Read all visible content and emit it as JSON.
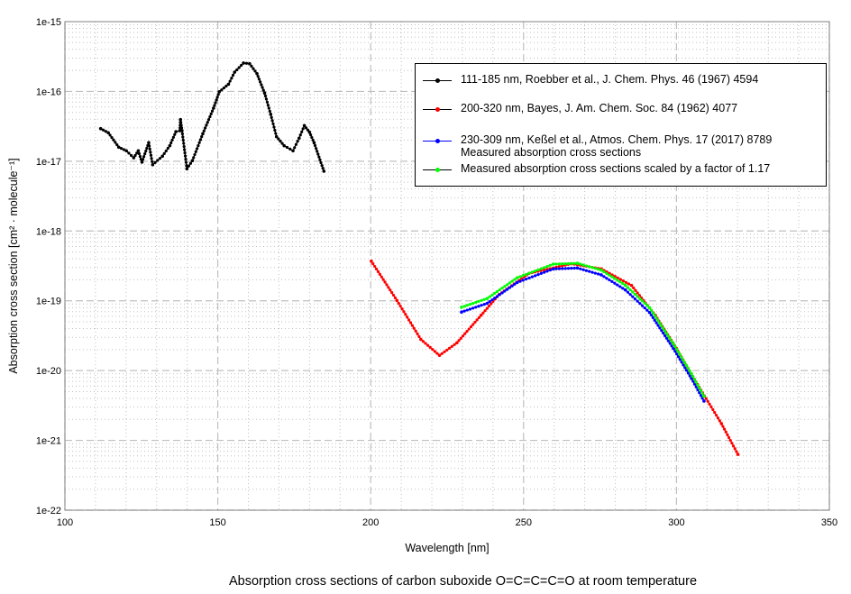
{
  "chart_data": {
    "type": "line",
    "title": "Absorption cross sections of carbon suboxide O=C=C=C=O at room temperature",
    "xlabel": "Wavelength [nm]",
    "ylabel": "Absorption cross section [cm² · molecule⁻¹]",
    "xlim": [
      100,
      350
    ],
    "ylim": [
      1e-22,
      1e-15
    ],
    "yscale": "log",
    "grid": true,
    "legend_position": "top-right",
    "x_ticks": [
      "100",
      "150",
      "200",
      "250",
      "300",
      "350"
    ],
    "y_ticks": [
      "1e-22",
      "1e-21",
      "1e-20",
      "1e-19",
      "1e-18",
      "1e-17",
      "1e-16",
      "1e-15"
    ],
    "series": [
      {
        "name": "111-185 nm, Roebber et al., J. Chem. Phys. 46 (1967) 4594",
        "color": "#000000",
        "line_color": "#000000",
        "legend_line": "#000000",
        "x": [
          111.7,
          114.2,
          117.6,
          120.1,
          122.5,
          124.0,
          125.2,
          127.4,
          128.7,
          131.9,
          134.3,
          136.3,
          137.6,
          137.8,
          138.3,
          139.9,
          141.7,
          145.1,
          148.6,
          150.5,
          153.5,
          155.5,
          158.4,
          160.4,
          162.8,
          165.3,
          167.3,
          169.2,
          171.7,
          174.6,
          176.6,
          178.3,
          180.0,
          181.5,
          184.7
        ],
        "y": [
          2.93e-17,
          2.56e-17,
          1.59e-17,
          1.41e-17,
          1.12e-17,
          1.41e-17,
          9.7e-18,
          1.84e-17,
          8.9e-18,
          1.18e-17,
          1.67e-17,
          2.65e-17,
          2.74e-17,
          3.95e-17,
          2.74e-17,
          7.8e-18,
          1.02e-17,
          2.48e-17,
          5.75e-17,
          9.9e-17,
          1.27e-16,
          1.89e-16,
          2.55e-16,
          2.5e-16,
          1.8e-16,
          9.5e-17,
          4.7e-17,
          2.25e-17,
          1.67e-17,
          1.41e-17,
          2.14e-17,
          3.24e-17,
          2.6e-17,
          1.84e-17,
          7.2e-18
        ]
      },
      {
        "name": "200-320 nm, Bayes, J. Am. Chem. Soc. 84 (1962) 4077",
        "color": "#ff0000",
        "line_color": "#ff0000",
        "legend_line": "#000000",
        "x": [
          200.2,
          208.6,
          216.4,
          222.5,
          228.2,
          236.1,
          242.0,
          251.8,
          265.6,
          275.4,
          285.3,
          293.1,
          300.0,
          306.9,
          314.7,
          320.1
        ],
        "y": [
          3.7e-19,
          1.01e-19,
          2.8e-20,
          1.65e-20,
          2.5e-20,
          6.2e-20,
          1.23e-19,
          2.47e-19,
          3.4e-19,
          2.87e-19,
          1.66e-19,
          6.2e-20,
          2.07e-20,
          6.3e-21,
          1.74e-21,
          6.3e-22
        ]
      },
      {
        "name": "230-309 nm, Keßel et al., Atmos. Chem. Phys. 17 (2017) 8789",
        "name2": "Measured absorption cross sections",
        "color": "#0000ff",
        "line_color": "#0000ff",
        "legend_line": "#0000ff",
        "x": [
          229.7,
          238.1,
          247.9,
          259.7,
          267.6,
          275.4,
          283.3,
          291.2,
          299.0,
          304.9,
          309.0
        ],
        "y": [
          6.9e-20,
          9.2e-20,
          1.83e-19,
          2.86e-19,
          2.95e-19,
          2.35e-19,
          1.43e-19,
          6.8e-20,
          2.07e-20,
          7.7e-21,
          3.66e-21
        ]
      },
      {
        "name": "Measured absorption cross sections scaled by a factor of 1.17",
        "color": "#00ff00",
        "line_color": "#00c000",
        "legend_line": "#000000",
        "x": [
          229.7,
          238.1,
          247.9,
          259.7,
          267.6,
          275.4,
          283.3,
          291.2,
          299.0,
          304.9,
          309.0
        ],
        "y": [
          8.07e-20,
          1.08e-19,
          2.14e-19,
          3.35e-19,
          3.45e-19,
          2.75e-19,
          1.67e-19,
          7.96e-20,
          2.42e-20,
          9e-21,
          4.28e-21
        ]
      }
    ]
  }
}
